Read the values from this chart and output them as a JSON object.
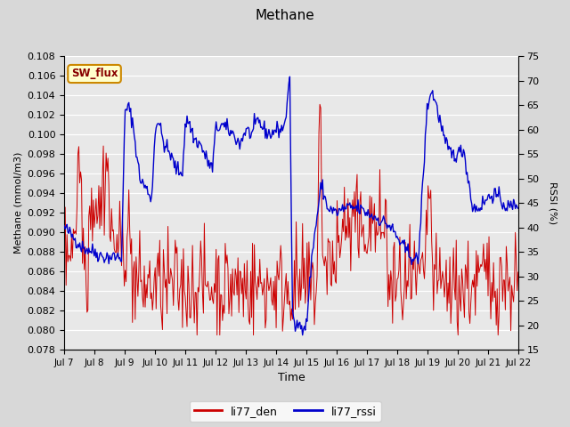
{
  "title": "Methane",
  "xlabel": "Time",
  "ylabel_left": "Methane (mmol/m3)",
  "ylabel_right": "RSSI (%)",
  "ylim_left": [
    0.078,
    0.108
  ],
  "ylim_right": [
    15,
    75
  ],
  "yticks_left": [
    0.078,
    0.08,
    0.082,
    0.084,
    0.086,
    0.088,
    0.09,
    0.092,
    0.094,
    0.096,
    0.098,
    0.1,
    0.102,
    0.104,
    0.106,
    0.108
  ],
  "yticks_right": [
    15,
    20,
    25,
    30,
    35,
    40,
    45,
    50,
    55,
    60,
    65,
    70,
    75
  ],
  "xtick_labels": [
    "Jul 7",
    "Jul 8",
    "Jul 9",
    "Jul 10",
    "Jul 11",
    "Jul 12",
    "Jul 13",
    "Jul 14",
    "Jul 15",
    "Jul 16",
    "Jul 17",
    "Jul 18",
    "Jul 19",
    "Jul 20",
    "Jul 21",
    "Jul 22"
  ],
  "color_den": "#cc0000",
  "color_rssi": "#0000cc",
  "fig_bg": "#d8d8d8",
  "plot_bg": "#e8e8e8",
  "grid_color": "#ffffff",
  "sw_flux_bg": "#ffffcc",
  "sw_flux_border": "#cc8800",
  "sw_flux_text": "#880000",
  "legend_den": "li77_den",
  "legend_rssi": "li77_rssi",
  "annotation": "SW_flux",
  "seed": 42
}
